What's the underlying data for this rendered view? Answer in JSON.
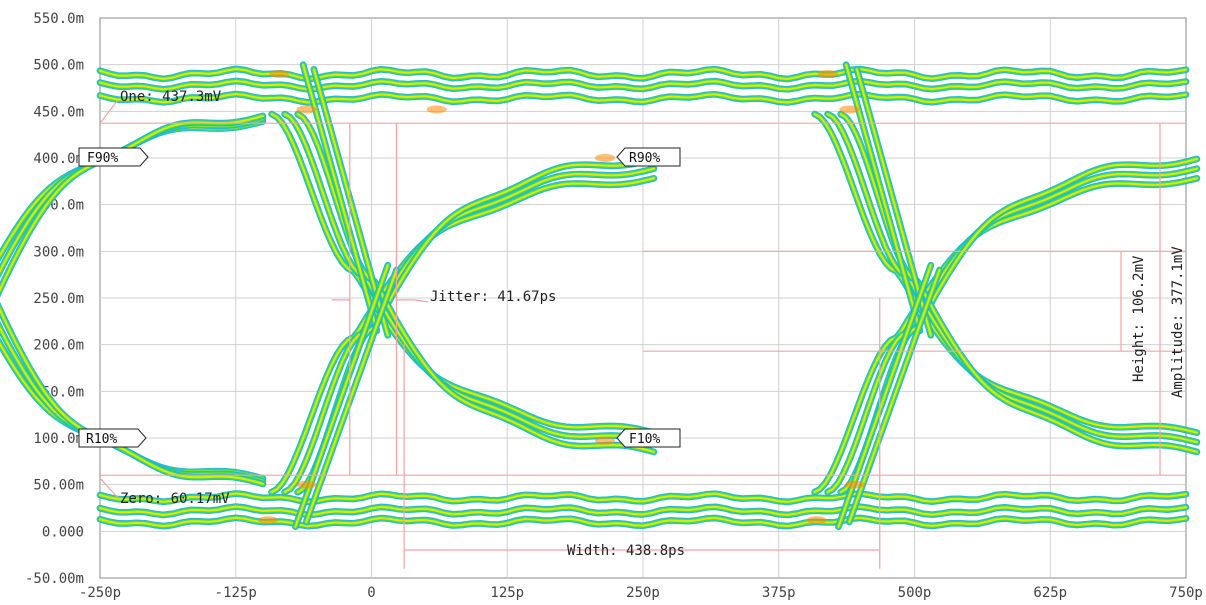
{
  "chart_data": {
    "type": "line",
    "title": "",
    "xlabel": "",
    "ylabel": "",
    "grid": true,
    "xlim": [
      -250,
      750
    ],
    "ylim": [
      -50,
      550
    ],
    "x_ticks": [
      {
        "v": -250,
        "label": "-250p"
      },
      {
        "v": -125,
        "label": "-125p"
      },
      {
        "v": 0,
        "label": "0"
      },
      {
        "v": 125,
        "label": "125p"
      },
      {
        "v": 250,
        "label": "250p"
      },
      {
        "v": 375,
        "label": "375p"
      },
      {
        "v": 500,
        "label": "500p"
      },
      {
        "v": 625,
        "label": "625p"
      },
      {
        "v": 750,
        "label": "750p"
      }
    ],
    "y_ticks": [
      {
        "v": 550,
        "label": "550.0m"
      },
      {
        "v": 500,
        "label": "500.0m"
      },
      {
        "v": 450,
        "label": "450.0m"
      },
      {
        "v": 400,
        "label": "400.0m"
      },
      {
        "v": 350,
        "label": "350.0m"
      },
      {
        "v": 300,
        "label": "300.0m"
      },
      {
        "v": 250,
        "label": "250.0m"
      },
      {
        "v": 200,
        "label": "200.0m"
      },
      {
        "v": 150,
        "label": "150.0m"
      },
      {
        "v": 100,
        "label": "100.0m"
      },
      {
        "v": 50,
        "label": "50.00m"
      },
      {
        "v": 0,
        "label": "0.000"
      },
      {
        "v": -50,
        "label": "-50.00m"
      }
    ],
    "zero_label_color": "#aa00aa",
    "eye": {
      "unit_interval": 500,
      "crossings": [
        -5,
        495
      ],
      "one_level": 437.3,
      "zero_level": 60.17,
      "p90_level": 397,
      "p10_level": 97,
      "crossing_level": 248
    },
    "measurements": {
      "one_level": "One: 437.3mV",
      "zero_level": "Zero: 60.17mV",
      "jitter": "Jitter: 41.67ps",
      "height": "Height: 106.2mV",
      "amplitude": "Amplitude: 377.1mV",
      "width": "Width: 438.8ps"
    },
    "markers": {
      "f90_left": "F90%",
      "r90": "R90%",
      "r10_left": "R10%",
      "f10": "F10%"
    },
    "colors": {
      "trace_outer": "#18b8d8",
      "trace_mid": "#44e044",
      "trace_hot": "#e8e800",
      "trace_peak": "#ff8800",
      "measure_line": "#f8a0a0",
      "grid": "#d0d0d0"
    }
  }
}
